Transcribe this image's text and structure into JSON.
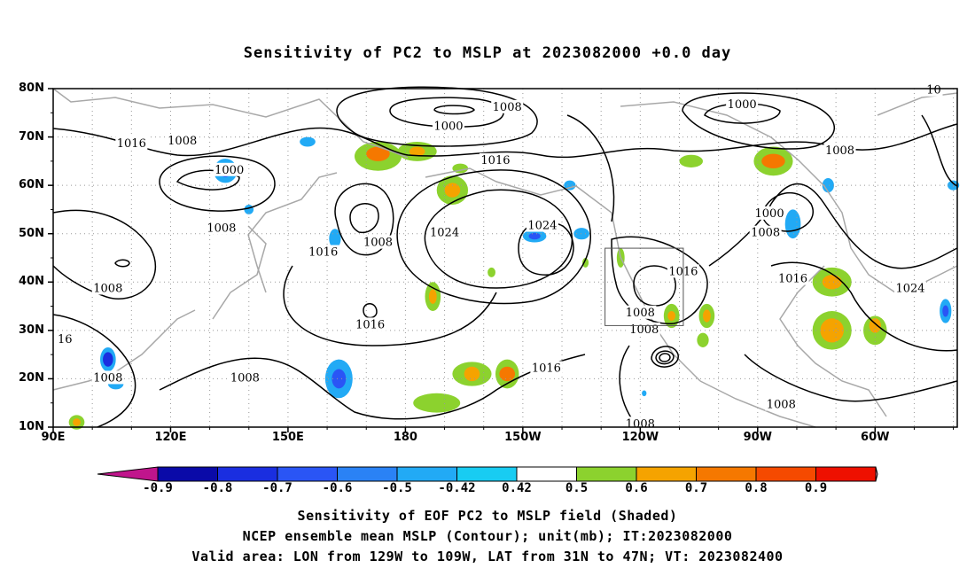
{
  "title": "Sensitivity of PC2 to MSLP at 2023082000 +0.0 day",
  "lat_labels": [
    "80N",
    "70N",
    "60N",
    "50N",
    "40N",
    "30N",
    "20N",
    "10N"
  ],
  "lat_values": [
    80,
    70,
    60,
    50,
    40,
    30,
    20,
    10
  ],
  "lon_labels": [
    "90E",
    "120E",
    "150E",
    "180",
    "150W",
    "120W",
    "90W",
    "60W"
  ],
  "lon_values": [
    90,
    120,
    150,
    180,
    210,
    240,
    270,
    300
  ],
  "contour_labels": [
    {
      "text": "1016",
      "lon": 110,
      "lat": 68.5
    },
    {
      "text": "1008",
      "lon": 123,
      "lat": 69
    },
    {
      "text": "1000",
      "lon": 135,
      "lat": 63
    },
    {
      "text": "1008",
      "lon": 133,
      "lat": 51
    },
    {
      "text": "1008",
      "lon": 104,
      "lat": 38.5
    },
    {
      "text": "16",
      "lon": 93,
      "lat": 28
    },
    {
      "text": "1008",
      "lon": 104,
      "lat": 20
    },
    {
      "text": "1008",
      "lon": 139,
      "lat": 20
    },
    {
      "text": "1016",
      "lon": 159,
      "lat": 46
    },
    {
      "text": "1008",
      "lon": 173,
      "lat": 48
    },
    {
      "text": "1016",
      "lon": 171,
      "lat": 31
    },
    {
      "text": "1000",
      "lon": 191,
      "lat": 72
    },
    {
      "text": "1008",
      "lon": 206,
      "lat": 76
    },
    {
      "text": "1016",
      "lon": 203,
      "lat": 65
    },
    {
      "text": "1024",
      "lon": 190,
      "lat": 50
    },
    {
      "text": "1024",
      "lon": 215,
      "lat": 51.5
    },
    {
      "text": "1016",
      "lon": 216,
      "lat": 22
    },
    {
      "text": "1016",
      "lon": 251,
      "lat": 42
    },
    {
      "text": "1008",
      "lon": 240,
      "lat": 33.5
    },
    {
      "text": "1008",
      "lon": 241,
      "lat": 30
    },
    {
      "text": "1008",
      "lon": 240,
      "lat": 10.5
    },
    {
      "text": "1000",
      "lon": 266,
      "lat": 76.5
    },
    {
      "text": "1008",
      "lon": 291,
      "lat": 67
    },
    {
      "text": "1000",
      "lon": 273,
      "lat": 54
    },
    {
      "text": "1008",
      "lon": 272,
      "lat": 50
    },
    {
      "text": "1016",
      "lon": 279,
      "lat": 40.5
    },
    {
      "text": "1024",
      "lon": 309,
      "lat": 38.5
    },
    {
      "text": "1008",
      "lon": 276,
      "lat": 14.5
    },
    {
      "text": "10",
      "lon": 315,
      "lat": 79.5
    }
  ],
  "colorbar": {
    "labels": [
      "-0.9",
      "-0.8",
      "-0.7",
      "-0.6",
      "-0.5",
      "-0.42",
      "0.42",
      "0.5",
      "0.6",
      "0.7",
      "0.8",
      "0.9"
    ],
    "colors": [
      "#c0158c",
      "#0a0aa8",
      "#1a2ee0",
      "#2a55f5",
      "#2a82f5",
      "#22aaf5",
      "#18ccf2",
      "#ffffff",
      "#8cd22e",
      "#f5a300",
      "#f57800",
      "#f54a00",
      "#ee1000",
      "#f5a2c6"
    ]
  },
  "valid_box": {
    "lon_min": 231,
    "lon_max": 251,
    "lat_min": 31,
    "lat_max": 47
  },
  "captions": [
    "Sensitivity of EOF PC2 to MSLP field (Shaded)",
    "NCEP ensemble mean MSLP (Contour); unit(mb); IT:2023082000",
    "Valid area: LON from 129W to 109W, LAT from 31N to 47N; VT: 2023082400"
  ],
  "map_extent": {
    "lon_min": 90,
    "lon_max": 321,
    "lat_min": 10,
    "lat_max": 80
  }
}
